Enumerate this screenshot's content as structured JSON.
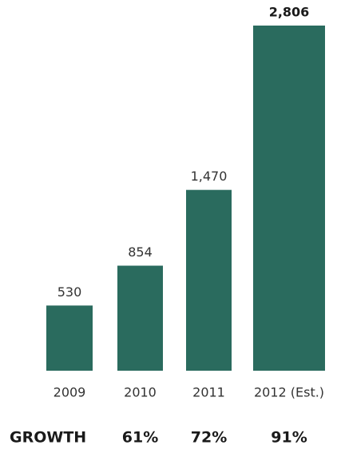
{
  "chart_data": {
    "type": "bar",
    "categories": [
      "2009",
      "2010",
      "2011",
      "2012 (Est.)"
    ],
    "values": [
      530,
      854,
      1470,
      2806
    ],
    "value_labels": [
      "530",
      "854",
      "1,470",
      "2,806"
    ],
    "color": "#2a6b5e",
    "growth": {
      "label": "GROWTH",
      "values": [
        "61%",
        "72%",
        "91%"
      ]
    }
  }
}
